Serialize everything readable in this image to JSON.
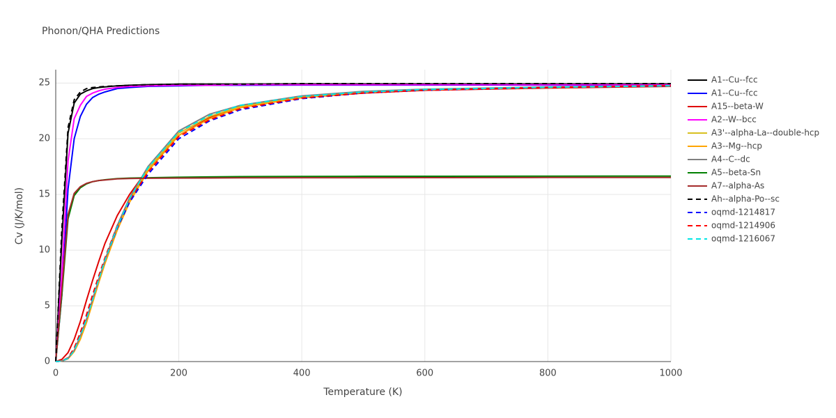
{
  "chart_data": {
    "type": "line",
    "title": "Phonon/QHA Predictions",
    "x_label": "Temperature (K)",
    "y_label": "Cv (J/K/mol)",
    "x": [
      0,
      10,
      20,
      30,
      40,
      50,
      60,
      70,
      80,
      100,
      120,
      150,
      200,
      250,
      300,
      400,
      500,
      600,
      800,
      1000
    ],
    "xlim": [
      0,
      1000
    ],
    "xticks": [
      0,
      200,
      400,
      600,
      800,
      1000
    ],
    "ylim": [
      0,
      26.2
    ],
    "yticks": [
      0,
      5,
      10,
      15,
      20,
      25
    ],
    "grid": true,
    "series": [
      {
        "name": "A1--Cu--fcc",
        "color": "#000000",
        "dash": false,
        "values": [
          0,
          11,
          20.5,
          23.2,
          24,
          24.3,
          24.5,
          24.6,
          24.65,
          24.75,
          24.8,
          24.85,
          24.9,
          24.9,
          24.9,
          24.92,
          24.92,
          24.92,
          24.92,
          24.92
        ]
      },
      {
        "name": "A1--Cu--fcc",
        "color": "#0000ff",
        "dash": false,
        "values": [
          0,
          6,
          15.5,
          20,
          22,
          23.1,
          23.7,
          24,
          24.2,
          24.5,
          24.6,
          24.7,
          24.75,
          24.8,
          24.8,
          24.82,
          24.82,
          24.82,
          24.82,
          24.82
        ]
      },
      {
        "name": "A15--beta-W",
        "color": "#e00000",
        "dash": false,
        "values": [
          0,
          0.2,
          0.8,
          2,
          3.6,
          5.5,
          7.3,
          9,
          10.6,
          13.1,
          15,
          17.3,
          20.3,
          21.9,
          22.8,
          23.7,
          24.1,
          24.35,
          24.55,
          24.7
        ]
      },
      {
        "name": "A2--W--bcc",
        "color": "#ff00ff",
        "dash": false,
        "values": [
          0,
          8,
          18,
          21.8,
          23,
          23.8,
          24.1,
          24.3,
          24.45,
          24.6,
          24.7,
          24.75,
          24.8,
          24.8,
          24.85,
          24.85,
          24.85,
          24.85,
          24.85,
          24.85
        ]
      },
      {
        "name": "A3'--alpha-La--double-hcp",
        "color": "#d8c020",
        "dash": false,
        "values": [
          0,
          0.05,
          0.3,
          1,
          2.2,
          3.7,
          5.5,
          7.3,
          9,
          12,
          14.5,
          17.3,
          20.5,
          22,
          22.9,
          23.8,
          24.2,
          24.4,
          24.6,
          24.75
        ]
      },
      {
        "name": "A3--Mg--hcp",
        "color": "#ffa500",
        "dash": false,
        "values": [
          0,
          0.05,
          0.25,
          0.9,
          2,
          3.5,
          5.3,
          7.1,
          8.8,
          11.8,
          14.3,
          17.1,
          20.3,
          21.8,
          22.8,
          23.7,
          24.15,
          24.4,
          24.6,
          24.75
        ]
      },
      {
        "name": "A4--C--dc",
        "color": "#808080",
        "dash": false,
        "values": [
          0,
          0.05,
          0.3,
          1,
          2.3,
          3.8,
          5.6,
          7.4,
          9.1,
          12.2,
          14.7,
          17.5,
          20.7,
          22.2,
          23,
          23.85,
          24.25,
          24.45,
          24.65,
          24.78
        ]
      },
      {
        "name": "A5--beta-Sn",
        "color": "#008000",
        "dash": false,
        "values": [
          0,
          6,
          12.8,
          14.9,
          15.6,
          15.95,
          16.15,
          16.25,
          16.32,
          16.42,
          16.47,
          16.5,
          16.55,
          16.58,
          16.6,
          16.62,
          16.63,
          16.63,
          16.64,
          16.65
        ]
      },
      {
        "name": "A7--alpha-As",
        "color": "#a52a2a",
        "dash": false,
        "values": [
          0,
          6.5,
          13.2,
          15.1,
          15.7,
          16,
          16.15,
          16.25,
          16.3,
          16.4,
          16.43,
          16.45,
          16.47,
          16.48,
          16.49,
          16.5,
          16.5,
          16.51,
          16.52,
          16.52
        ]
      },
      {
        "name": "Ah--alpha-Po--sc",
        "color": "#000000",
        "dash": true,
        "values": [
          0,
          12,
          21,
          23.5,
          24.2,
          24.5,
          24.6,
          24.65,
          24.7,
          24.75,
          24.8,
          24.85,
          24.9,
          24.9,
          24.9,
          24.95,
          24.95,
          24.95,
          24.95,
          24.95
        ]
      },
      {
        "name": "oqmd-1214817",
        "color": "#0000ff",
        "dash": true,
        "values": [
          0,
          0.05,
          0.3,
          1.1,
          2.5,
          4.1,
          5.8,
          7.5,
          9.1,
          12,
          14.3,
          16.8,
          20,
          21.6,
          22.6,
          23.6,
          24.1,
          24.35,
          24.6,
          24.75
        ]
      },
      {
        "name": "oqmd-1214906",
        "color": "#ff0000",
        "dash": true,
        "values": [
          0,
          0.06,
          0.35,
          1.2,
          2.6,
          4.2,
          6,
          7.7,
          9.3,
          12.2,
          14.5,
          17,
          20.2,
          21.7,
          22.7,
          23.65,
          24.1,
          24.35,
          24.6,
          24.78
        ]
      },
      {
        "name": "oqmd-1216067",
        "color": "#00e5e5",
        "dash": true,
        "values": [
          0,
          0.05,
          0.3,
          1,
          2.3,
          3.8,
          5.6,
          7.4,
          9.1,
          12.1,
          14.6,
          17.4,
          20.6,
          22.1,
          23,
          23.8,
          24.2,
          24.42,
          24.62,
          24.75
        ]
      }
    ]
  }
}
